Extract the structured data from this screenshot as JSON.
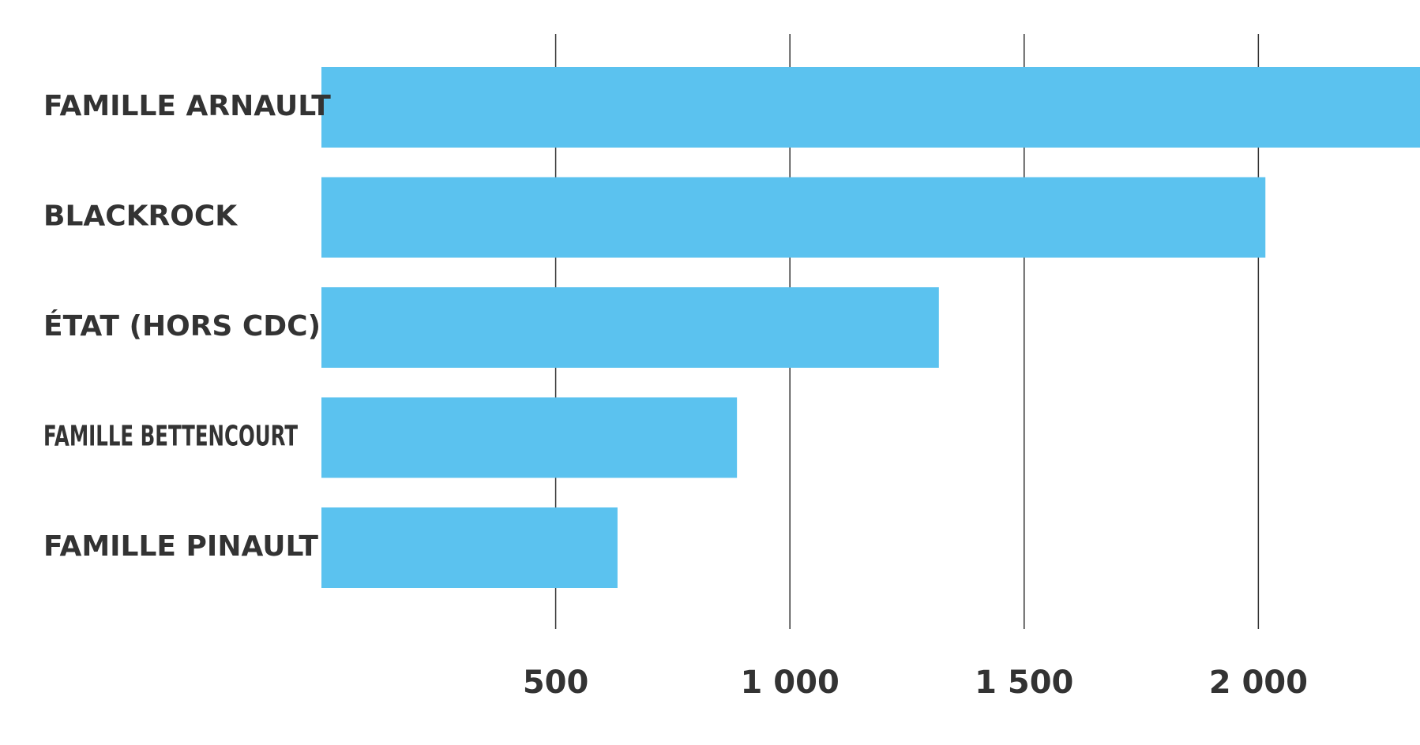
{
  "chart_data": {
    "type": "bar",
    "orientation": "horizontal",
    "categories": [
      "FAMILLE ARNAULT",
      "BLACKROCK",
      "ÉTAT (HORS CDC)",
      "FAMILLE BETTENCOURT",
      "FAMILLE PINAULT"
    ],
    "values": [
      2350,
      2015,
      1318,
      887,
      632
    ],
    "x_ticks": [
      500,
      1000,
      1500,
      2000
    ],
    "x_tick_labels": [
      "500",
      "1 000",
      "1 500",
      "2 000"
    ],
    "xlim": [
      0,
      2345
    ],
    "title": "",
    "xlabel": "",
    "ylabel": "",
    "grid": "vertical",
    "legend": "none",
    "bar_color": "#5BC2EF",
    "grid_color": "#333333",
    "text_color": "#333333"
  }
}
